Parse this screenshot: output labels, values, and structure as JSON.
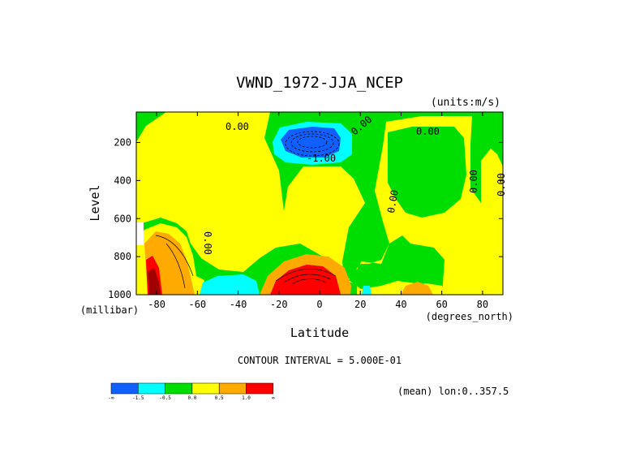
{
  "chart_data": {
    "type": "heatmap",
    "title": "VWND_1972-JJA_NCEP",
    "units": "(units:m/s)",
    "xlabel": "Latitude",
    "ylabel": "Level",
    "x_units": "(degrees_north)",
    "y_units": "(millibar)",
    "xlim": [
      -90,
      90
    ],
    "ylim": [
      1000,
      40
    ],
    "x_ticks": [
      -80,
      -60,
      -40,
      -20,
      0,
      20,
      40,
      60,
      80
    ],
    "x_tick_labels": [
      "-80",
      "-60",
      "-40",
      "-20",
      "0",
      "20",
      "40",
      "60",
      "80"
    ],
    "y_ticks": [
      200,
      400,
      600,
      800,
      1000
    ],
    "y_tick_labels": [
      "200",
      "400",
      "600",
      "800",
      "1000"
    ],
    "contour_interval": "CONTOUR INTERVAL = 5.000E-01",
    "footer": "(mean) lon:0..357.5",
    "contour_labels": [
      "0.00",
      "0.00",
      "0.00",
      "0.00",
      "-1.00",
      "0.00",
      "0.00",
      "0.00",
      "0.00"
    ],
    "colorbar": {
      "colors": [
        "#1060ff",
        "#00ffff",
        "#00dd00",
        "#ffff00",
        "#ffaa00",
        "#ff0000"
      ],
      "labels": [
        "-∞",
        "-1.5",
        "-0.5",
        "0.0",
        "0.5",
        "1.0",
        "∞"
      ]
    },
    "regions": [
      {
        "name": "upper-trop-jet-core",
        "fill": "blue",
        "lat_range": [
          -22,
          10
        ],
        "level_range": [
          120,
          270
        ],
        "value": "< -1.5"
      },
      {
        "name": "surface-equatorial-max",
        "fill": "red",
        "lat_range": [
          -16,
          4
        ],
        "level_range": [
          850,
          1000
        ],
        "value": "> 1.0"
      },
      {
        "name": "southern-polar-max",
        "fill": "darkred",
        "lat_range": [
          -90,
          -80
        ],
        "level_range": [
          830,
          1000
        ],
        "value": "> 1.5"
      },
      {
        "name": "southern-midlat-min",
        "fill": "cyan",
        "lat_range": [
          -64,
          -32
        ],
        "level_range": [
          910,
          1000
        ],
        "value": "< -0.5"
      }
    ]
  }
}
